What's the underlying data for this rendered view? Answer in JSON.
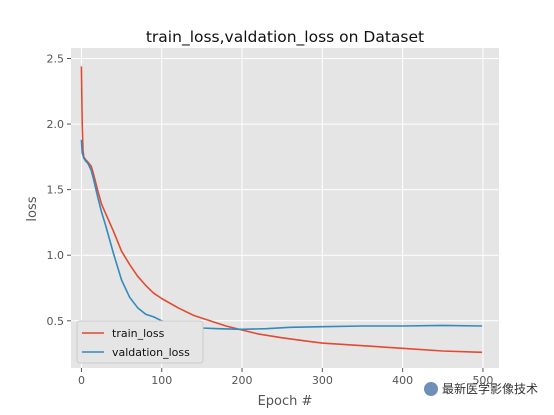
{
  "chart_data": {
    "type": "line",
    "title": "train_loss,valdation_loss on Dataset",
    "xlabel": "Epoch #",
    "ylabel": "loss",
    "xlim": [
      -13,
      520
    ],
    "ylim": [
      0.14,
      2.58
    ],
    "xticks": [
      0,
      100,
      200,
      300,
      400,
      500
    ],
    "yticks": [
      0.5,
      1.0,
      1.5,
      2.0,
      2.5
    ],
    "xtick_labels": [
      "0",
      "100",
      "200",
      "300",
      "400",
      "500"
    ],
    "ytick_labels": [
      "0.5",
      "1.0",
      "1.5",
      "2.0",
      "2.5"
    ],
    "grid": true,
    "legend_position": "lower-left",
    "background_color": "#e5e5e5",
    "series": [
      {
        "name": "train_loss",
        "color": "#e24a33",
        "x": [
          0,
          1,
          2,
          3,
          5,
          8,
          12,
          15,
          20,
          25,
          30,
          40,
          50,
          60,
          70,
          80,
          90,
          100,
          120,
          140,
          160,
          180,
          200,
          220,
          250,
          280,
          300,
          350,
          400,
          450,
          499
        ],
        "y": [
          2.44,
          2.0,
          1.8,
          1.75,
          1.73,
          1.71,
          1.68,
          1.62,
          1.5,
          1.39,
          1.32,
          1.18,
          1.03,
          0.93,
          0.84,
          0.77,
          0.71,
          0.67,
          0.6,
          0.54,
          0.5,
          0.46,
          0.43,
          0.4,
          0.37,
          0.345,
          0.33,
          0.31,
          0.29,
          0.27,
          0.26
        ]
      },
      {
        "name": "valdation_loss",
        "color": "#348abd",
        "x": [
          0,
          1,
          3,
          5,
          8,
          12,
          15,
          20,
          25,
          30,
          40,
          50,
          60,
          70,
          80,
          90,
          100,
          110,
          130,
          150,
          170,
          200,
          230,
          260,
          300,
          350,
          400,
          450,
          499
        ],
        "y": [
          1.88,
          1.78,
          1.74,
          1.72,
          1.7,
          1.65,
          1.58,
          1.45,
          1.33,
          1.23,
          1.01,
          0.81,
          0.68,
          0.6,
          0.55,
          0.53,
          0.5,
          0.48,
          0.46,
          0.445,
          0.44,
          0.435,
          0.44,
          0.45,
          0.455,
          0.46,
          0.46,
          0.465,
          0.46
        ]
      }
    ]
  },
  "watermark": {
    "text": "最新医学影像技术",
    "icon": "chat-bubble-icon"
  }
}
